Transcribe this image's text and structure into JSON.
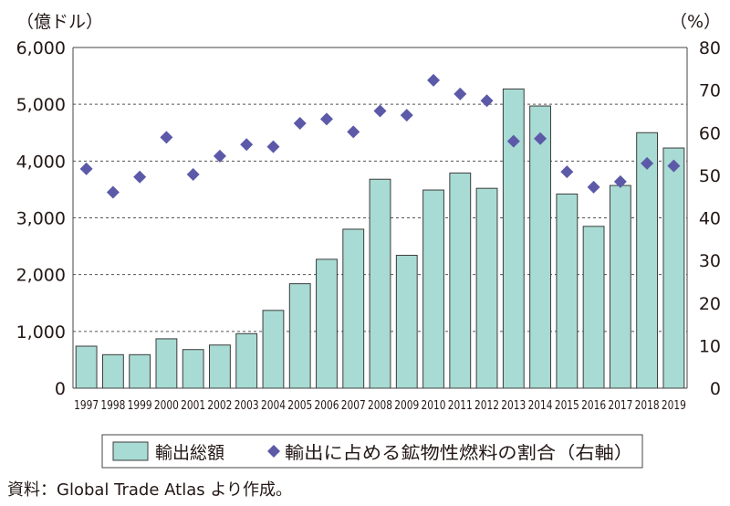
{
  "chart_data": {
    "type": "bar",
    "left_unit": "（億ドル）",
    "right_unit": "（%）",
    "categories": [
      "1997",
      "1998",
      "1999",
      "2000",
      "2001",
      "2002",
      "2003",
      "2004",
      "2005",
      "2006",
      "2007",
      "2008",
      "2009",
      "2010",
      "2011",
      "2012",
      "2013",
      "2014",
      "2015",
      "2016",
      "2017",
      "2018",
      "2019"
    ],
    "yticks_left": [
      "0",
      "1,000",
      "2,000",
      "3,000",
      "4,000",
      "5,000",
      "6,000"
    ],
    "yticks_right": [
      "0",
      "10",
      "20",
      "30",
      "40",
      "50",
      "60",
      "70",
      "80"
    ],
    "ylim_left": [
      0,
      6000
    ],
    "ylim_right": [
      0,
      80
    ],
    "grid": "horizontal-dashed",
    "legend_position": "bottom",
    "series": [
      {
        "name": "輸出総額",
        "kind": "bar",
        "axis": "left",
        "color": "#a8dbd3",
        "values": [
          740,
          590,
          590,
          870,
          680,
          760,
          960,
          1370,
          1840,
          2270,
          2800,
          3680,
          2340,
          3490,
          3790,
          3520,
          5270,
          4970,
          3420,
          2850,
          3570,
          4500,
          4230
        ]
      },
      {
        "name": "輸出に占める鉱物性燃料の割合（右軸）",
        "kind": "scatter",
        "axis": "right",
        "marker": "diamond",
        "color": "#5c5aa8",
        "values": [
          51.5,
          46.0,
          49.6,
          58.9,
          50.2,
          54.5,
          57.2,
          56.7,
          62.2,
          63.2,
          60.2,
          65.1,
          64.1,
          72.3,
          69.1,
          67.5,
          58.0,
          58.6,
          50.8,
          47.2,
          48.5,
          52.8,
          52.2
        ]
      }
    ]
  },
  "source": "資料：Global Trade Atlas より作成。"
}
